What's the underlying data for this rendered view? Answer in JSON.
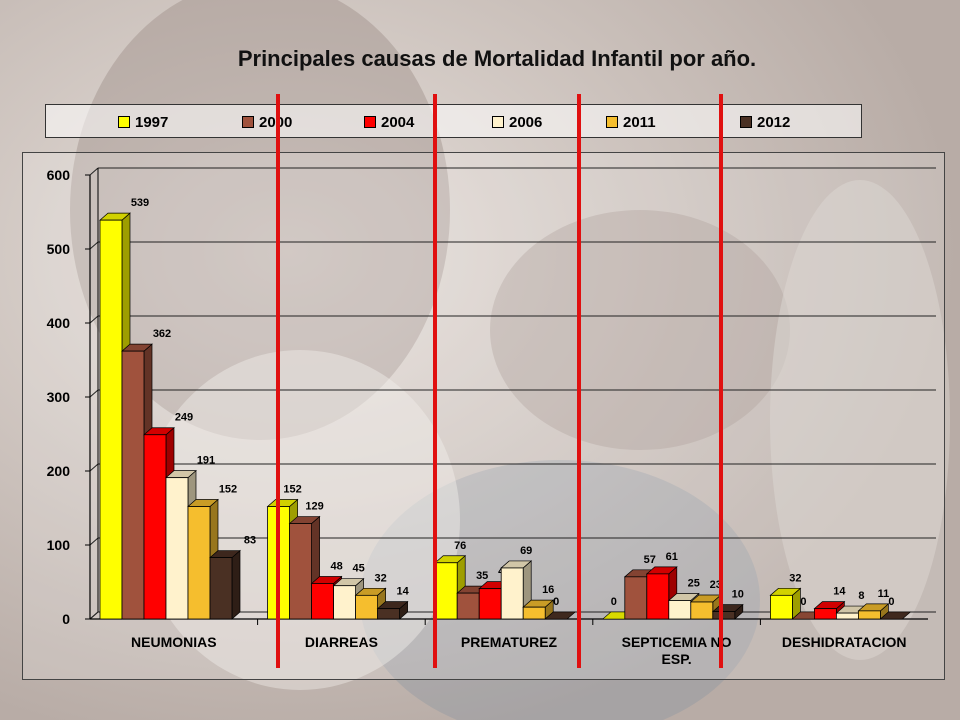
{
  "chart_data": {
    "type": "bar",
    "title": "Principales causas de Mortalidad Infantil por año.",
    "categories": [
      "NEUMONIAS",
      "DIARREAS",
      "PREMATUREZ",
      "SEPTICEMIA NO ESP.",
      "DESHIDRATACION"
    ],
    "series": [
      {
        "name": "1997",
        "color": "#FFFF00",
        "values": [
          539,
          152,
          76,
          0,
          32
        ]
      },
      {
        "name": "2000",
        "color": "#A0523D",
        "values": [
          362,
          129,
          35,
          57,
          0
        ]
      },
      {
        "name": "2004",
        "color": "#FF0000",
        "values": [
          249,
          48,
          41,
          61,
          14
        ]
      },
      {
        "name": "2006",
        "color": "#FFF2CC",
        "values": [
          191,
          45,
          69,
          25,
          8
        ]
      },
      {
        "name": "2011",
        "color": "#F5BE2E",
        "values": [
          152,
          32,
          16,
          23,
          11
        ]
      },
      {
        "name": "2012",
        "color": "#4A3023",
        "values": [
          83,
          14,
          0,
          10,
          0
        ]
      }
    ],
    "yticks": [
      0,
      100,
      200,
      300,
      400,
      500,
      600
    ],
    "ylim": [
      0,
      600
    ],
    "xlabel": "",
    "ylabel": "",
    "legend_position": "top",
    "grid": true,
    "bar_style": "3d"
  },
  "annotations": {
    "divider_color": "#E01010"
  }
}
